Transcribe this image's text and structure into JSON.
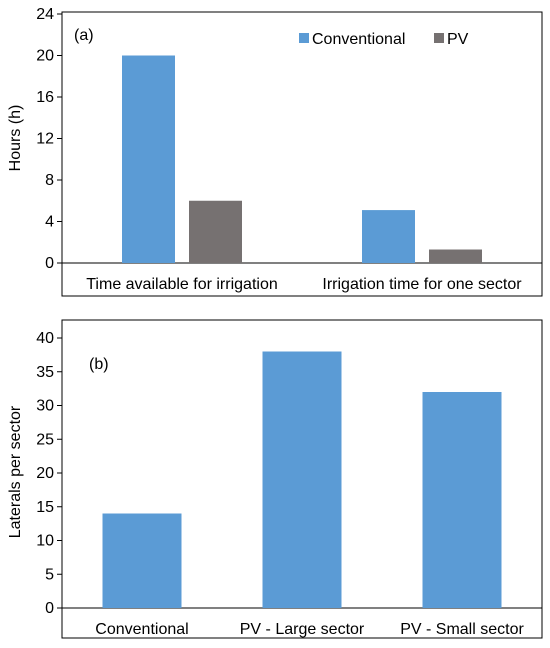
{
  "colors": {
    "conventional": "#5b9bd5",
    "pv": "#767171",
    "axis": "#000000",
    "frame": "#000000"
  },
  "chart_data": [
    {
      "panel_label": "(a)",
      "type": "bar",
      "categories": [
        "Time available for irrigation",
        "Irrigation time for one sector"
      ],
      "series": [
        {
          "name": "Conventional",
          "values": [
            20,
            5.1
          ],
          "color_key": "conventional"
        },
        {
          "name": "PV",
          "values": [
            6,
            1.3
          ],
          "color_key": "pv"
        }
      ],
      "ylabel": "Hours (h)",
      "ylim": [
        0,
        24
      ],
      "yticks": [
        0,
        4,
        8,
        12,
        16,
        20,
        24
      ],
      "grid": false,
      "legend": "top-right"
    },
    {
      "panel_label": "(b)",
      "type": "bar",
      "categories": [
        "Conventional",
        "PV - Large sector",
        "PV - Small sector"
      ],
      "series": [
        {
          "values": [
            14,
            38,
            32
          ],
          "color_key": "conventional"
        }
      ],
      "ylabel": "Laterals per sector",
      "ylim": [
        0,
        40
      ],
      "yticks": [
        0,
        5,
        10,
        15,
        20,
        25,
        30,
        35,
        40
      ],
      "grid": false,
      "legend": "none"
    }
  ]
}
